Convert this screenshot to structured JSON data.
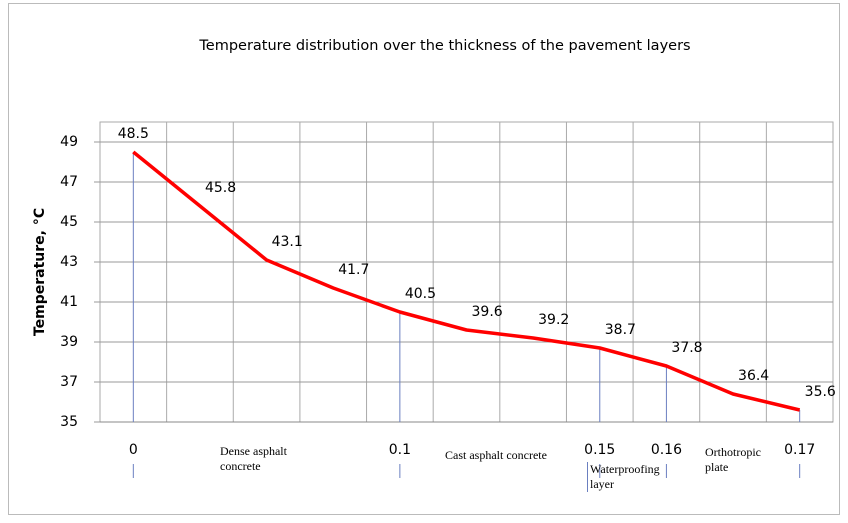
{
  "chart_data": {
    "type": "line",
    "title": "Temperature distribution over the thickness of the pavement layers",
    "ylabel": "Temperature, °C",
    "categories": [
      "0",
      null,
      null,
      null,
      "0.1",
      null,
      null,
      "0.15",
      "0.16",
      null,
      "0.17"
    ],
    "values": [
      48.5,
      45.8,
      43.1,
      41.7,
      40.5,
      39.6,
      39.2,
      38.7,
      37.8,
      36.4,
      35.6
    ],
    "color": "#ff0000",
    "ylim": [
      35,
      50
    ],
    "yticks": [
      35,
      37,
      39,
      41,
      43,
      45,
      47,
      49
    ],
    "grid": true,
    "annotations": [
      "Dense asphalt concrete",
      "Cast asphalt concrete",
      "Waterproofing layer",
      "Orthotropic plate"
    ]
  }
}
